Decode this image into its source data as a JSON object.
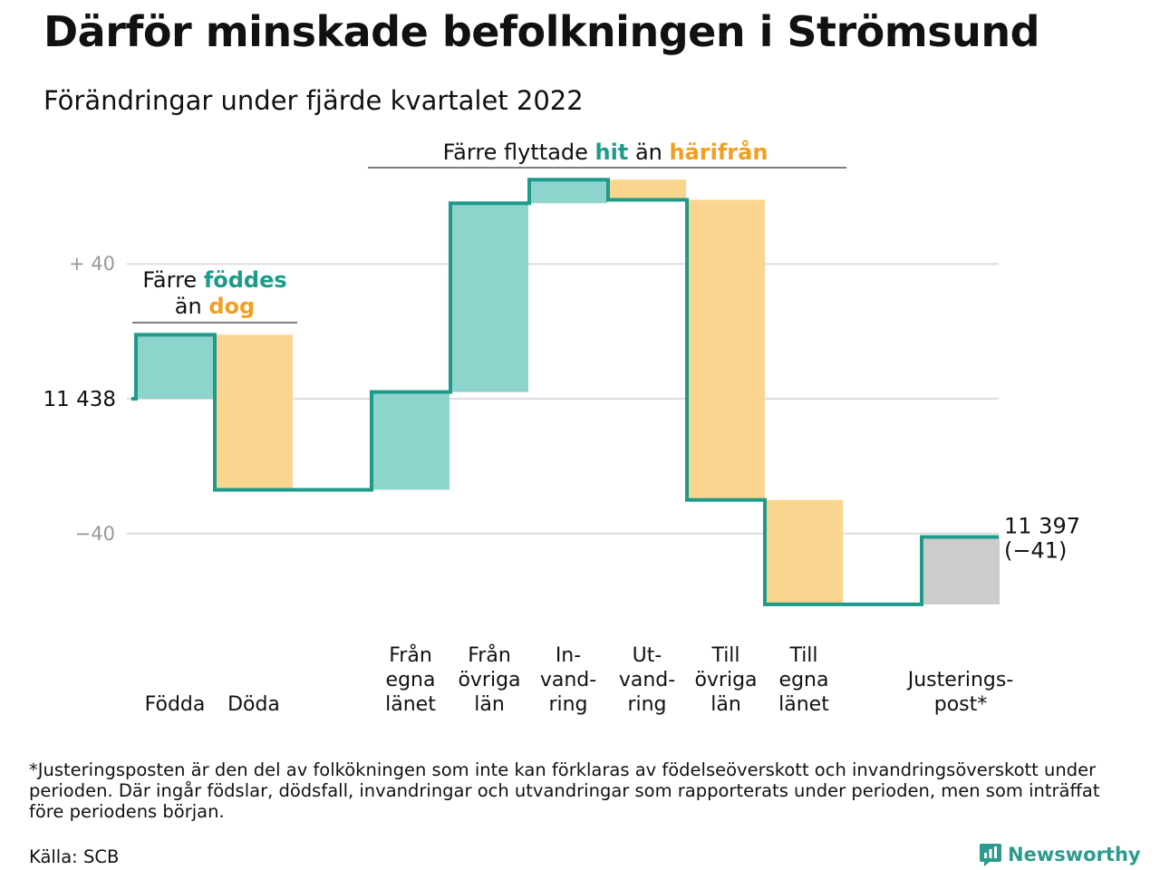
{
  "title": "Därför minskade befolkningen i Strömsund",
  "subtitle": "Förändringar under fjärde kvartalet 2022",
  "colors": {
    "increase": "#8dd4cc",
    "decrease": "#f9d58f",
    "adjustment": "#cccccc",
    "line": "#1e9a8a",
    "accent_teal": "#1e9a8a",
    "accent_orange": "#f0a020",
    "grid": "#dddddd",
    "tick_text": "#999999"
  },
  "chart_data": {
    "type": "waterfall",
    "start_value": 11438,
    "start_label": "11 438",
    "end_label": "11 397",
    "end_change_label": "(−41)",
    "y_ticks": [
      {
        "value": 40,
        "label": "+ 40"
      },
      {
        "value": -40,
        "label": "−40"
      }
    ],
    "y_range": [
      -70,
      70
    ],
    "grid": true,
    "steps": [
      {
        "key": "fodda",
        "label_lines": [
          "Födda"
        ],
        "value": 19,
        "kind": "increase",
        "line_bottom": true
      },
      {
        "key": "doda",
        "label_lines": [
          "Döda"
        ],
        "value": -46,
        "kind": "decrease",
        "line_bottom": true
      },
      {
        "key": "fran-egna-lanet",
        "label_lines": [
          "Från",
          "egna",
          "länet"
        ],
        "value": 29,
        "kind": "increase",
        "line_bottom": true
      },
      {
        "key": "fran-ovriga-lan",
        "label_lines": [
          "Från",
          "övriga",
          "län"
        ],
        "value": 56,
        "kind": "increase",
        "line_bottom": true
      },
      {
        "key": "invandring",
        "label_lines": [
          "In-",
          "vand-",
          "ring"
        ],
        "value": 7,
        "kind": "increase",
        "line_bottom": true
      },
      {
        "key": "utvandring",
        "label_lines": [
          "Ut-",
          "vand-",
          "ring"
        ],
        "value": -6,
        "kind": "decrease",
        "line_bottom": true
      },
      {
        "key": "till-ovriga-lan",
        "label_lines": [
          "Till",
          "övriga",
          "län"
        ],
        "value": -89,
        "kind": "decrease",
        "line_bottom": true
      },
      {
        "key": "till-egna-lanet",
        "label_lines": [
          "Till",
          "egna",
          "länet"
        ],
        "value": -31,
        "kind": "decrease",
        "line_bottom": true
      },
      {
        "key": "justeringspost",
        "label_lines": [
          "Justerings-",
          "post*"
        ],
        "value": 20,
        "kind": "adjustment",
        "line_bottom": false
      }
    ],
    "annotations": [
      {
        "key": "births",
        "line1_parts": [
          {
            "text": "Färre ",
            "style": "plain"
          },
          {
            "text": "föddes",
            "style": "teal"
          }
        ],
        "line2_parts": [
          {
            "text": "än ",
            "style": "plain"
          },
          {
            "text": "dog",
            "style": "orange"
          }
        ]
      },
      {
        "key": "migration",
        "line1_parts": [
          {
            "text": "Färre flyttade ",
            "style": "plain"
          },
          {
            "text": "hit",
            "style": "teal"
          },
          {
            "text": " än ",
            "style": "plain"
          },
          {
            "text": "härifrån",
            "style": "orange"
          }
        ]
      }
    ]
  },
  "footnote": "*Justeringsposten är den del av folkökningen som inte kan förklaras av födelseöverskott och invandringsöverskott under perioden. Där ingår födslar, dödsfall, invandringar och utvandringar som rapporterats under perioden, men som inträffat före periodens början.",
  "source": "Källa: SCB",
  "logo": {
    "name": "Newsworthy",
    "icon": "newsworthy-logo-icon"
  }
}
